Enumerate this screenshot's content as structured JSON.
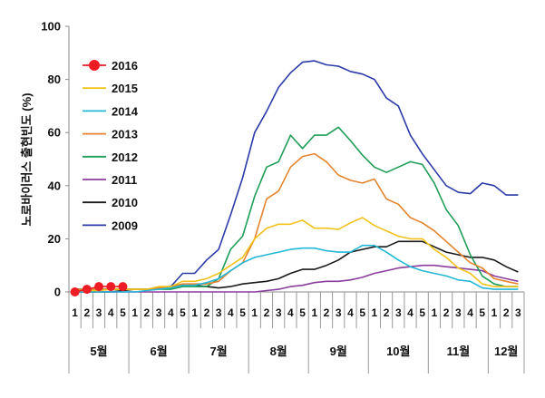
{
  "chart_data": {
    "type": "line",
    "ylabel": "노로바이러스 출현빈도 (%)",
    "ylim": [
      0,
      100
    ],
    "yticks": [
      "0",
      "20",
      "40",
      "60",
      "80",
      "100"
    ],
    "weeks": [
      "1",
      "2",
      "3",
      "4",
      "5",
      "1",
      "2",
      "3",
      "4",
      "5",
      "1",
      "2",
      "3",
      "4",
      "5",
      "1",
      "2",
      "3",
      "4",
      "5",
      "1",
      "2",
      "3",
      "4",
      "5",
      "1",
      "2",
      "3",
      "4",
      "5",
      "1",
      "2",
      "3",
      "4",
      "5",
      "1",
      "2",
      "3"
    ],
    "months": [
      {
        "label": "5월",
        "start": 0,
        "end": 5
      },
      {
        "label": "6월",
        "start": 5,
        "end": 10
      },
      {
        "label": "7월",
        "start": 10,
        "end": 15
      },
      {
        "label": "8월",
        "start": 15,
        "end": 20
      },
      {
        "label": "9월",
        "start": 20,
        "end": 25
      },
      {
        "label": "10월",
        "start": 25,
        "end": 30
      },
      {
        "label": "11월",
        "start": 30,
        "end": 35
      },
      {
        "label": "12월",
        "start": 35,
        "end": 38
      }
    ],
    "legend_position": "upper-left",
    "grid": false,
    "series": [
      {
        "name": "2016",
        "color": "#ee1c24",
        "marker": "circle",
        "values": [
          0,
          1,
          2,
          2,
          2
        ]
      },
      {
        "name": "2015",
        "color": "#f2c21b",
        "values": [
          0.5,
          0.5,
          0.5,
          1,
          1,
          1,
          1,
          2,
          2,
          4,
          4,
          5,
          7,
          10,
          13,
          20,
          24,
          25.5,
          25.5,
          27,
          24,
          24,
          23.5,
          26,
          28,
          25,
          23,
          21,
          20,
          20,
          16,
          13,
          9,
          7,
          3,
          2,
          2,
          2
        ]
      },
      {
        "name": "2014",
        "color": "#22b8d8",
        "values": [
          0,
          0,
          0,
          0,
          0,
          0,
          0.5,
          1,
          1.5,
          2.5,
          2.5,
          3.5,
          5,
          8,
          11,
          13,
          14,
          15,
          16,
          16.5,
          16.5,
          15.5,
          15,
          15,
          17.5,
          17.5,
          15,
          12,
          9.5,
          8,
          7,
          6,
          4.5,
          4,
          1.5,
          1,
          1,
          1
        ]
      },
      {
        "name": "2013",
        "color": "#e5842e",
        "values": [
          1,
          1,
          1,
          1,
          1,
          1,
          1,
          1.5,
          2,
          3,
          3,
          3,
          4,
          8,
          11,
          20,
          35,
          38,
          47,
          51,
          52,
          49,
          44,
          42,
          41,
          42.5,
          35,
          33,
          28,
          26,
          23,
          19,
          15,
          11,
          9,
          5,
          4,
          3
        ]
      },
      {
        "name": "2012",
        "color": "#1e9d57",
        "values": [
          1,
          1,
          1,
          1,
          1,
          1,
          1,
          1,
          1,
          2,
          2,
          2,
          5,
          16,
          21,
          36,
          47,
          49,
          59,
          54,
          59,
          59,
          62,
          57,
          51.5,
          47,
          45,
          47,
          49,
          48,
          41,
          31,
          25,
          14,
          6,
          3,
          2,
          2
        ]
      },
      {
        "name": "2011",
        "color": "#8b3d9e",
        "values": [
          0,
          0,
          0,
          0,
          0,
          0,
          0,
          0,
          0,
          0,
          0,
          0,
          0,
          0,
          0,
          0,
          0.5,
          1,
          2,
          2.5,
          3.5,
          4,
          4,
          4.5,
          5.5,
          7,
          8,
          9,
          9.5,
          10,
          10,
          9.5,
          9,
          8.5,
          8,
          6,
          5,
          4
        ]
      },
      {
        "name": "2010",
        "color": "#1a1a1a",
        "values": [
          0,
          0,
          0,
          0,
          0.5,
          1,
          1,
          1.5,
          2,
          2.5,
          2.5,
          2,
          1.5,
          2,
          3,
          3.5,
          4,
          5,
          7,
          8.5,
          8.5,
          10,
          12,
          15,
          16,
          17,
          17,
          19,
          19,
          19,
          17,
          15,
          14,
          13,
          13,
          12,
          9.5,
          7.5
        ]
      },
      {
        "name": "2009",
        "color": "#2c3aa8",
        "values": [
          1,
          1,
          1,
          1,
          1,
          1,
          1,
          1.5,
          2,
          7,
          7,
          12,
          16,
          29,
          43,
          60,
          68,
          77,
          82.5,
          86.5,
          87,
          85.5,
          85,
          83,
          82,
          80,
          73,
          70,
          59,
          52,
          46,
          40,
          37.5,
          37,
          41,
          40,
          36.5,
          36.5
        ]
      }
    ]
  }
}
